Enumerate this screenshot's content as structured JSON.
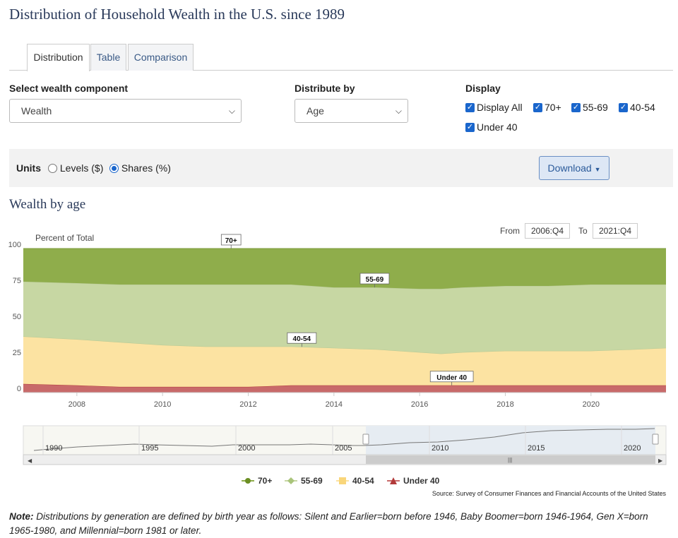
{
  "title": "Distribution of Household Wealth in the U.S. since 1989",
  "tabs": [
    {
      "label": "Distribution",
      "active": true
    },
    {
      "label": "Table",
      "active": false
    },
    {
      "label": "Comparison",
      "active": false
    }
  ],
  "controls": {
    "component_label": "Select wealth component",
    "component_value": "Wealth",
    "distribute_label": "Distribute by",
    "distribute_value": "Age",
    "display_label": "Display",
    "display_options": [
      {
        "label": "Display All",
        "checked": true
      },
      {
        "label": "70+",
        "checked": true
      },
      {
        "label": "55-69",
        "checked": true
      },
      {
        "label": "40-54",
        "checked": true
      },
      {
        "label": "Under 40",
        "checked": true
      }
    ]
  },
  "units": {
    "label": "Units",
    "options": [
      {
        "label": "Levels ($)",
        "selected": false
      },
      {
        "label": "Shares (%)",
        "selected": true
      }
    ],
    "download_label": "Download"
  },
  "chart_subtitle": "Wealth by age",
  "range": {
    "from_label": "From",
    "from_value": "2006:Q4",
    "to_label": "To",
    "to_value": "2021:Q4"
  },
  "navigator": {
    "year_labels": [
      "1990",
      "1995",
      "2000",
      "2005",
      "2010",
      "2015",
      "2020"
    ]
  },
  "source": "Source: Survey of Consumer Finances and Financial Accounts of the United States",
  "note": {
    "lead": "Note:",
    "text": " Distributions by generation are defined by birth year as follows: Silent and Earlier=born before 1946, Baby Boomer=born 1946-1964, Gen X=born 1965-1980, and Millennial=born 1981 or later."
  },
  "colors": {
    "70+": "#8fad4b",
    "55-69": "#c7d7a3",
    "40-54": "#fce3a2",
    "Under 40": "#c86a6a"
  },
  "chart_data": {
    "type": "area",
    "stacked": true,
    "ylabel": "Percent of Total",
    "ylim": [
      0,
      100
    ],
    "yticks": [
      0,
      25,
      50,
      75,
      100
    ],
    "xlim": [
      2006.75,
      2021.75
    ],
    "xticks": [
      2008,
      2010,
      2012,
      2014,
      2016,
      2018,
      2020
    ],
    "x": [
      2006.75,
      2008,
      2009,
      2010,
      2011,
      2012,
      2013,
      2014,
      2015,
      2016,
      2016.5,
      2017,
      2018,
      2019,
      2020,
      2021,
      2021.75
    ],
    "series": [
      {
        "name": "Under 40",
        "marker": "triangle",
        "color": "#c86a6a",
        "values": [
          6,
          5,
          4,
          4,
          4,
          4,
          5,
          5,
          5,
          5,
          5,
          5,
          5,
          5,
          5,
          5,
          5
        ]
      },
      {
        "name": "40-54",
        "marker": "square",
        "color": "#fce3a2",
        "values": [
          33,
          32,
          31,
          29,
          28,
          28,
          27,
          26,
          25,
          23,
          22,
          23,
          24,
          24,
          24,
          25,
          26
        ]
      },
      {
        "name": "55-69",
        "marker": "diamond",
        "color": "#c7d7a3",
        "values": [
          38,
          39,
          40,
          42,
          43,
          43,
          43,
          42,
          43,
          44,
          45,
          45,
          45,
          45,
          46,
          45,
          44
        ]
      },
      {
        "name": "70+",
        "marker": "circle",
        "color": "#8fad4b",
        "values": [
          23,
          24,
          25,
          25,
          25,
          25,
          25,
          27,
          27,
          28,
          28,
          27,
          26,
          26,
          25,
          25,
          25
        ]
      }
    ],
    "data_labels": [
      {
        "series": "70+",
        "x": 2011.6,
        "text": "70+"
      },
      {
        "series": "55-69",
        "x": 2014.95,
        "text": "55-69"
      },
      {
        "series": "40-54",
        "x": 2013.25,
        "text": "40-54"
      },
      {
        "series": "Under 40",
        "x": 2016.75,
        "text": "Under 40"
      }
    ],
    "legend": [
      "70+",
      "55-69",
      "40-54",
      "Under 40"
    ]
  }
}
